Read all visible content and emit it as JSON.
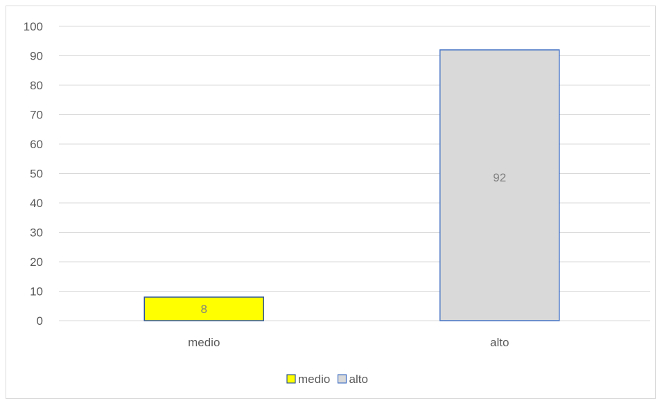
{
  "chart_data": {
    "type": "bar",
    "categories": [
      "medio",
      "alto"
    ],
    "series": [
      {
        "name": "medio",
        "values": [
          8,
          null
        ],
        "color": "#ffff00",
        "border": "#2f5597"
      },
      {
        "name": "alto",
        "values": [
          null,
          92
        ],
        "color": "#d9d9d9",
        "border": "#4472c4"
      }
    ],
    "data_labels": [
      "8",
      "92"
    ],
    "ylim": [
      0,
      100
    ],
    "yticks": [
      0,
      10,
      20,
      30,
      40,
      50,
      60,
      70,
      80,
      90,
      100
    ],
    "grid": true,
    "legend_position": "bottom",
    "title": "",
    "xlabel": "",
    "ylabel": "",
    "colors": {
      "gridline": "#d9d9d9",
      "axis_text": "#595959",
      "label_text": "#7f7f7f"
    }
  }
}
